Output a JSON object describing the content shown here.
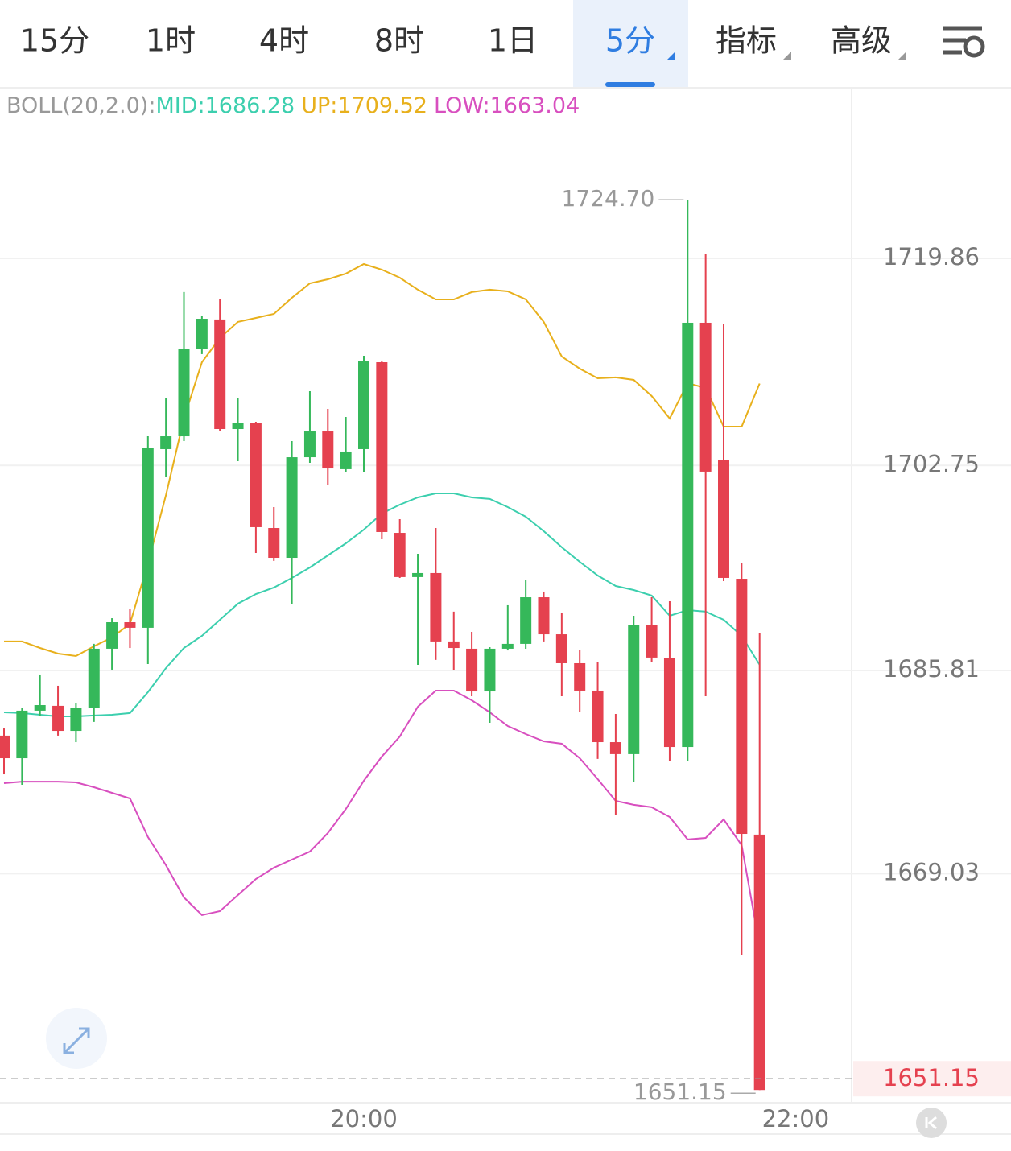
{
  "tabs": [
    {
      "label": "15分",
      "dropdown": false
    },
    {
      "label": "1时",
      "dropdown": false
    },
    {
      "label": "4时",
      "dropdown": false
    },
    {
      "label": "8时",
      "dropdown": false
    },
    {
      "label": "1日",
      "dropdown": false
    },
    {
      "label": "5分",
      "dropdown": true
    },
    {
      "label": "指标",
      "dropdown": true
    },
    {
      "label": "高级",
      "dropdown": true
    }
  ],
  "active_tab_index": 5,
  "chart_data": {
    "type": "candlestick",
    "indicator_label": "BOLL(20,2.0):",
    "categories": [
      null,
      null,
      null,
      null,
      null,
      null,
      null,
      null,
      null,
      null,
      null,
      null,
      null,
      null,
      null,
      null,
      null,
      null,
      null,
      null,
      "20:00",
      null,
      null,
      null,
      null,
      null,
      null,
      null,
      null,
      null,
      null,
      null,
      null,
      null,
      null,
      null,
      null,
      null,
      null,
      null,
      null,
      null,
      null,
      null,
      "22:00"
    ],
    "open": [
      1680.43,
      1678.56,
      1682.49,
      1682.89,
      1680.82,
      1682.69,
      1687.61,
      1689.8,
      1689.34,
      1704.1,
      1705.16,
      1712.35,
      1714.81,
      1705.76,
      1706.23,
      1697.58,
      1695.12,
      1703.43,
      1705.56,
      1702.44,
      1704.1,
      1711.28,
      1697.18,
      1693.53,
      1693.86,
      1688.21,
      1687.61,
      1684.08,
      1687.61,
      1688.01,
      1691.86,
      1688.8,
      1686.41,
      1684.15,
      1679.89,
      1678.9,
      1689.54,
      1686.81,
      1679.49,
      1714.54,
      1703.17,
      1693.39,
      1672.25,
      null,
      null
    ],
    "high": [
      1681.02,
      1682.69,
      1685.48,
      1684.55,
      1683.15,
      1688.01,
      1690.13,
      1690.87,
      1705.16,
      1708.29,
      1717.07,
      1715.07,
      1716.47,
      1708.29,
      1706.36,
      1699.31,
      1704.76,
      1708.89,
      1707.42,
      1706.76,
      1711.81,
      1711.41,
      1698.31,
      1695.45,
      1697.58,
      1690.67,
      1689.0,
      1687.74,
      1691.2,
      1693.26,
      1692.33,
      1690.53,
      1687.47,
      1686.54,
      1682.22,
      1690.33,
      1691.86,
      1691.53,
      1724.7,
      1720.19,
      1714.41,
      1694.66,
      1688.87,
      null,
      null
    ],
    "low": [
      1677.23,
      1676.37,
      1682.02,
      1680.43,
      1679.89,
      1681.56,
      1685.88,
      1687.67,
      1686.34,
      1701.77,
      1704.76,
      1711.95,
      1705.63,
      1703.1,
      1695.52,
      1694.86,
      1691.33,
      1702.97,
      1701.11,
      1702.17,
      1702.17,
      1696.65,
      1693.46,
      1686.28,
      1686.68,
      1685.88,
      1683.68,
      1681.49,
      1687.47,
      1687.61,
      1688.21,
      1683.68,
      1682.42,
      1678.5,
      1673.91,
      1676.63,
      1686.54,
      1678.36,
      1678.3,
      1683.68,
      1693.19,
      1662.27,
      1651.15,
      null,
      null
    ],
    "close": [
      1678.56,
      1682.49,
      1682.95,
      1680.82,
      1682.69,
      1687.61,
      1689.8,
      1689.34,
      1704.17,
      1705.16,
      1712.35,
      1714.87,
      1705.76,
      1706.23,
      1697.65,
      1695.12,
      1703.43,
      1705.56,
      1702.5,
      1703.9,
      1711.41,
      1697.25,
      1693.53,
      1693.86,
      1688.21,
      1687.67,
      1684.08,
      1687.61,
      1688.01,
      1691.86,
      1688.8,
      1686.41,
      1684.15,
      1679.89,
      1678.9,
      1689.54,
      1686.88,
      1679.49,
      1714.54,
      1702.24,
      1693.46,
      1672.31,
      1651.15,
      null,
      null
    ],
    "up_color": "#35b85a",
    "down_color": "#e5414f",
    "series": [
      {
        "label": "MID:1686.28",
        "color": "#3ccfae",
        "values": [
          1682.35,
          1682.29,
          1682.15,
          1682.02,
          1682.02,
          1682.09,
          1682.15,
          1682.29,
          1684.02,
          1686.01,
          1687.67,
          1688.67,
          1690.0,
          1691.33,
          1692.13,
          1692.66,
          1693.46,
          1694.32,
          1695.32,
          1696.32,
          1697.45,
          1698.78,
          1699.51,
          1700.11,
          1700.44,
          1700.44,
          1700.11,
          1699.98,
          1699.31,
          1698.51,
          1697.32,
          1695.99,
          1694.79,
          1693.66,
          1692.79,
          1692.46,
          1692.0,
          1690.33,
          1690.8,
          1690.67,
          1690.0,
          1688.67,
          1686.28,
          null,
          null
        ]
      },
      {
        "label": "UP:1709.52",
        "color": "#e8b01c",
        "values": [
          1688.21,
          1688.21,
          1687.67,
          1687.21,
          1687.01,
          1687.81,
          1688.54,
          1689.67,
          1694.66,
          1700.31,
          1706.63,
          1711.28,
          1713.28,
          1714.61,
          1714.94,
          1715.27,
          1716.6,
          1717.8,
          1718.13,
          1718.6,
          1719.39,
          1718.93,
          1718.26,
          1717.27,
          1716.47,
          1716.47,
          1717.07,
          1717.27,
          1717.13,
          1716.47,
          1714.61,
          1711.75,
          1710.75,
          1709.95,
          1710.02,
          1709.82,
          1708.49,
          1706.63,
          1709.55,
          1709.15,
          1705.96,
          1705.96,
          1709.52,
          null,
          null
        ]
      },
      {
        "label": "LOW:1663.04",
        "color": "#d84fbf",
        "values": [
          1676.5,
          1676.63,
          1676.63,
          1676.63,
          1676.57,
          1676.17,
          1675.7,
          1675.24,
          1672.05,
          1669.72,
          1667.06,
          1665.6,
          1665.93,
          1667.26,
          1668.59,
          1669.52,
          1670.18,
          1670.85,
          1672.38,
          1674.37,
          1676.7,
          1678.7,
          1680.36,
          1682.82,
          1684.15,
          1684.15,
          1683.35,
          1682.35,
          1681.22,
          1680.56,
          1679.96,
          1679.76,
          1678.56,
          1676.83,
          1675.04,
          1674.71,
          1674.51,
          1673.71,
          1671.85,
          1671.98,
          1673.51,
          1671.38,
          1663.04,
          null,
          null
        ]
      }
    ],
    "ylim": [
      1650.1,
      1733.89
    ],
    "yticks": [
      1719.86,
      1702.75,
      1685.81,
      1669.03
    ],
    "grid": true,
    "max_marker": {
      "value": 1724.7,
      "label": "1724.70"
    },
    "min_marker": 1651.15,
    "last_price": 1651.15
  }
}
